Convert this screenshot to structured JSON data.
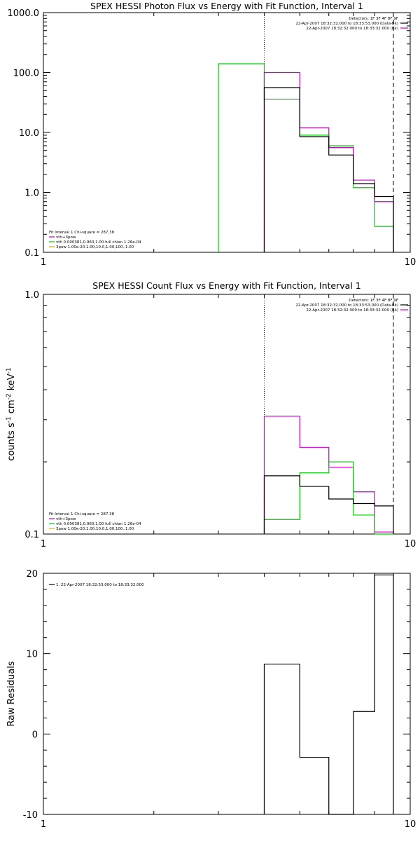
{
  "colors": {
    "black": "#000000",
    "magenta": "#cc00cc",
    "green": "#00cc00",
    "orange": "#ddaa00"
  },
  "chart_data": [
    {
      "type": "line",
      "title": "SPEX HESSI Photon Flux vs Energy with Fit Function, Interval 1",
      "xlabel": "",
      "ylabel": "",
      "x_scale": "log",
      "y_scale": "log",
      "xlim": [
        1,
        10
      ],
      "ylim": [
        0.1,
        1000
      ],
      "xticks": [
        "1",
        "10"
      ],
      "yticks": [
        "0.1",
        "1.0",
        "10.0",
        "100.0",
        "1000.0"
      ],
      "vlines": [
        {
          "x": 4.0,
          "style": "dotted"
        },
        {
          "x": 9.0,
          "style": "dashed"
        }
      ],
      "legend_right": {
        "header": "Detectors: 1F 3F 4F 8F 9F",
        "entries": [
          {
            "text": "22-Apr-2007 18:32:32.000 to 18:33:53.000 (Data-Bk)",
            "color": "black"
          },
          {
            "text": "22-Apr-2007 18:32:32.000 to 18:33:32.000 (Bk)",
            "color": "magenta"
          }
        ]
      },
      "legend_left": {
        "header": "Fit Interval 1    Chi-square = 287.38",
        "entries": [
          {
            "text": "vth+3pow",
            "color": "magenta"
          },
          {
            "text": "vth 0.000381,0.960,1.00  full chian 1.26e-04",
            "color": "green"
          },
          {
            "text": "3pow 1.00e-20,1.00,10.0,1.00,100.,1.00",
            "color": "orange"
          }
        ]
      },
      "series": [
        {
          "color": "green",
          "edges": [
            3.0,
            4.0,
            5.0,
            6.0,
            7.0,
            8.0,
            9.0
          ],
          "values": [
            140,
            36,
            9.0,
            6.0,
            1.2,
            0.27
          ]
        },
        {
          "color": "magenta",
          "edges": [
            4.0,
            5.0,
            6.0,
            7.0,
            8.0,
            9.0
          ],
          "values": [
            100,
            12,
            5.6,
            1.6,
            0.7
          ]
        },
        {
          "color": "black",
          "edges": [
            4.0,
            5.0,
            6.0,
            7.0,
            8.0,
            9.0
          ],
          "values": [
            56,
            8.5,
            4.2,
            1.4,
            0.85
          ]
        }
      ]
    },
    {
      "type": "line",
      "title": "SPEX HESSI Count Flux vs Energy with Fit Function, Interval 1",
      "xlabel": "",
      "ylabel": "counts s-1 cm-2 keV-1",
      "x_scale": "log",
      "y_scale": "log",
      "xlim": [
        1,
        10
      ],
      "ylim": [
        0.1,
        1.0
      ],
      "xticks": [
        "1",
        "10"
      ],
      "yticks": [
        "0.1",
        "1.0"
      ],
      "vlines": [
        {
          "x": 4.0,
          "style": "dotted"
        },
        {
          "x": 9.0,
          "style": "dashed"
        }
      ],
      "legend_right": {
        "entries": [
          {
            "text": "22-Apr-2007 18:32:32.000 to 18:33:53.000 (Data-Bk)",
            "color": "black"
          },
          {
            "text": "22-Apr-2007 18:32:32.000 to 18:33:32.000 (Bk)",
            "color": "magenta"
          }
        ],
        "header": "Detectors: 1F 3F 4F 8F 9F"
      },
      "legend_left": {
        "header": "Fit Interval 1    Chi-square = 287.38",
        "entries": [
          {
            "text": "vth+3pow",
            "color": "magenta"
          },
          {
            "text": "vth 0.000381,0.960,1.00  full chian 1.26e-04",
            "color": "green"
          },
          {
            "text": "3pow 1.00e-20,1.00,10.0,1.00,100.,1.00",
            "color": "orange"
          }
        ]
      },
      "series": [
        {
          "color": "magenta",
          "edges": [
            4.0,
            5.0,
            6.0,
            7.0,
            8.0,
            9.0
          ],
          "values": [
            0.31,
            0.23,
            0.19,
            0.15,
            0.102
          ]
        },
        {
          "color": "green",
          "edges": [
            4.0,
            5.0,
            6.0,
            7.0,
            8.0,
            9.0
          ],
          "values": [
            0.115,
            0.18,
            0.2,
            0.12,
            0.1
          ]
        },
        {
          "color": "black",
          "edges": [
            4.0,
            5.0,
            6.0,
            7.0,
            8.0,
            9.0
          ],
          "values": [
            0.175,
            0.158,
            0.14,
            0.134,
            0.131
          ]
        }
      ]
    },
    {
      "type": "line",
      "title": "",
      "xlabel": "",
      "ylabel": "Raw Residuals",
      "x_scale": "log",
      "y_scale": "linear",
      "xlim": [
        1,
        10
      ],
      "ylim": [
        -10,
        20
      ],
      "xticks": [
        "1",
        "10"
      ],
      "yticks": [
        "-10",
        "0",
        "10",
        "20"
      ],
      "legend_left": {
        "entries": [
          {
            "text": "1. 22-Apr-2007 18:32:53.000 to 18:33:32.000",
            "color": "black"
          }
        ]
      },
      "series": [
        {
          "color": "black",
          "edges": [
            4.0,
            5.0,
            6.0,
            7.0,
            8.0,
            9.0
          ],
          "values": [
            8.7,
            -2.9,
            -10.2,
            2.8,
            19.8
          ]
        }
      ]
    }
  ]
}
